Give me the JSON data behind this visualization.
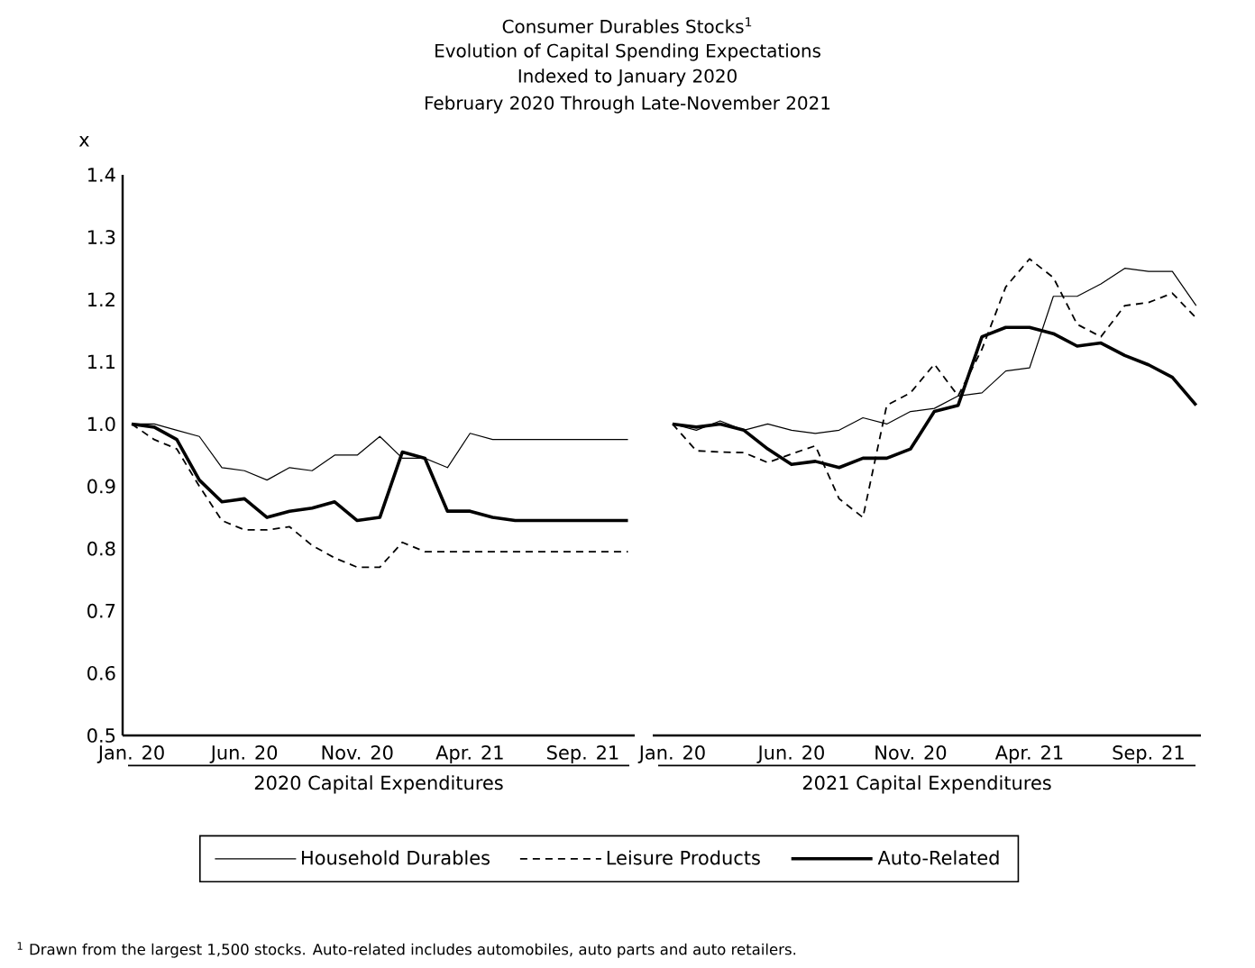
{
  "chart_data": [
    {
      "type": "line",
      "title": "Consumer Durables Stocks$^{1}$",
      "subtitle": "Evolution of Capital Spending Expectations",
      "annotations": [
        "Indexed to January 2020",
        "February 2020 Through Late-November 2021",
        "$^{1}$ Drawn from the largest 1,500 stocks.  Auto-related includes automobiles, auto parts and auto retailers."
      ],
      "ylabel": "x",
      "xlabel": "2020 Capital Expenditures",
      "categories": [
        "Jan. 20",
        null,
        null,
        null,
        null,
        "Jun. 20",
        null,
        null,
        null,
        null,
        "Nov. 20",
        null,
        null,
        null,
        null,
        "Apr. 21",
        null,
        null,
        null,
        null,
        "Sep. 21",
        null,
        null
      ],
      "ylim": [
        0.5,
        1.4
      ],
      "yticks": [
        0.5,
        0.6,
        0.7,
        0.8,
        0.9,
        {
          "value": 1.0,
          "label": "1.0"
        },
        1.1,
        1.2,
        1.3,
        1.4
      ],
      "legend": "bottom",
      "series": [
        {
          "name": "Household Durables",
          "color": "#000000",
          "line_style": "solid",
          "values": [
            1.0,
            1.0,
            0.99,
            0.98,
            0.93,
            0.925,
            0.91,
            0.93,
            0.925,
            0.95,
            0.95,
            0.98,
            0.945,
            0.945,
            0.93,
            0.985,
            0.975,
            0.975,
            0.975,
            0.975,
            0.975,
            0.975,
            0.975
          ]
        },
        {
          "name": "Leisure Products",
          "color": "#000000",
          "line_style": "dashed",
          "values": [
            1.0,
            0.975,
            0.96,
            0.9,
            0.845,
            0.83,
            0.83,
            0.835,
            0.805,
            0.785,
            0.77,
            0.77,
            0.81,
            0.795,
            0.795,
            0.795,
            0.795,
            0.795,
            0.795,
            0.795,
            0.795,
            0.795,
            0.795
          ]
        },
        {
          "name": "Auto-Related",
          "color": "#000000",
          "line_style": "solid",
          "values": [
            1.0,
            0.995,
            0.975,
            0.91,
            0.875,
            0.88,
            0.85,
            0.86,
            0.865,
            0.875,
            0.845,
            0.85,
            0.955,
            0.945,
            0.86,
            0.86,
            0.85,
            0.845,
            0.845,
            0.845,
            0.845,
            0.845,
            0.845
          ]
        }
      ]
    },
    {
      "type": "line",
      "xlabel": "2021 Capital Expenditures",
      "tick_labels": "x",
      "categories": [
        "Jan. 20",
        null,
        null,
        null,
        null,
        "Jun. 20",
        null,
        null,
        null,
        null,
        "Nov. 20",
        null,
        null,
        null,
        null,
        "Apr. 21",
        null,
        null,
        null,
        null,
        "Sep. 21",
        null,
        null
      ],
      "ylim": [
        0.5,
        1.4
      ],
      "series": [
        {
          "color": "#000000",
          "line_style": "solid",
          "values": [
            1.0,
            0.99,
            1.005,
            0.99,
            1.0,
            0.99,
            0.985,
            0.99,
            1.01,
            1.0,
            1.02,
            1.025,
            1.045,
            1.05,
            1.085,
            1.09,
            1.205,
            1.205,
            1.225,
            1.25,
            1.245,
            1.245,
            1.19
          ]
        },
        {
          "color": "#000000",
          "line_style": "dashed",
          "values": [
            1.0,
            0.957,
            0.955,
            0.954,
            0.938,
            0.952,
            0.965,
            0.88,
            0.85,
            1.03,
            1.05,
            1.096,
            1.045,
            1.12,
            1.22,
            1.265,
            1.235,
            1.16,
            1.14,
            1.19,
            1.195,
            1.21,
            1.17
          ]
        },
        {
          "color": "#000000",
          "line_style": "solid",
          "values": [
            1.0,
            0.995,
            1.0,
            0.99,
            0.96,
            0.935,
            0.94,
            0.93,
            0.945,
            0.945,
            0.96,
            1.02,
            1.03,
            1.14,
            1.155,
            1.155,
            1.145,
            1.125,
            1.13,
            1.11,
            1.095,
            1.075,
            1.03
          ]
        }
      ]
    }
  ]
}
